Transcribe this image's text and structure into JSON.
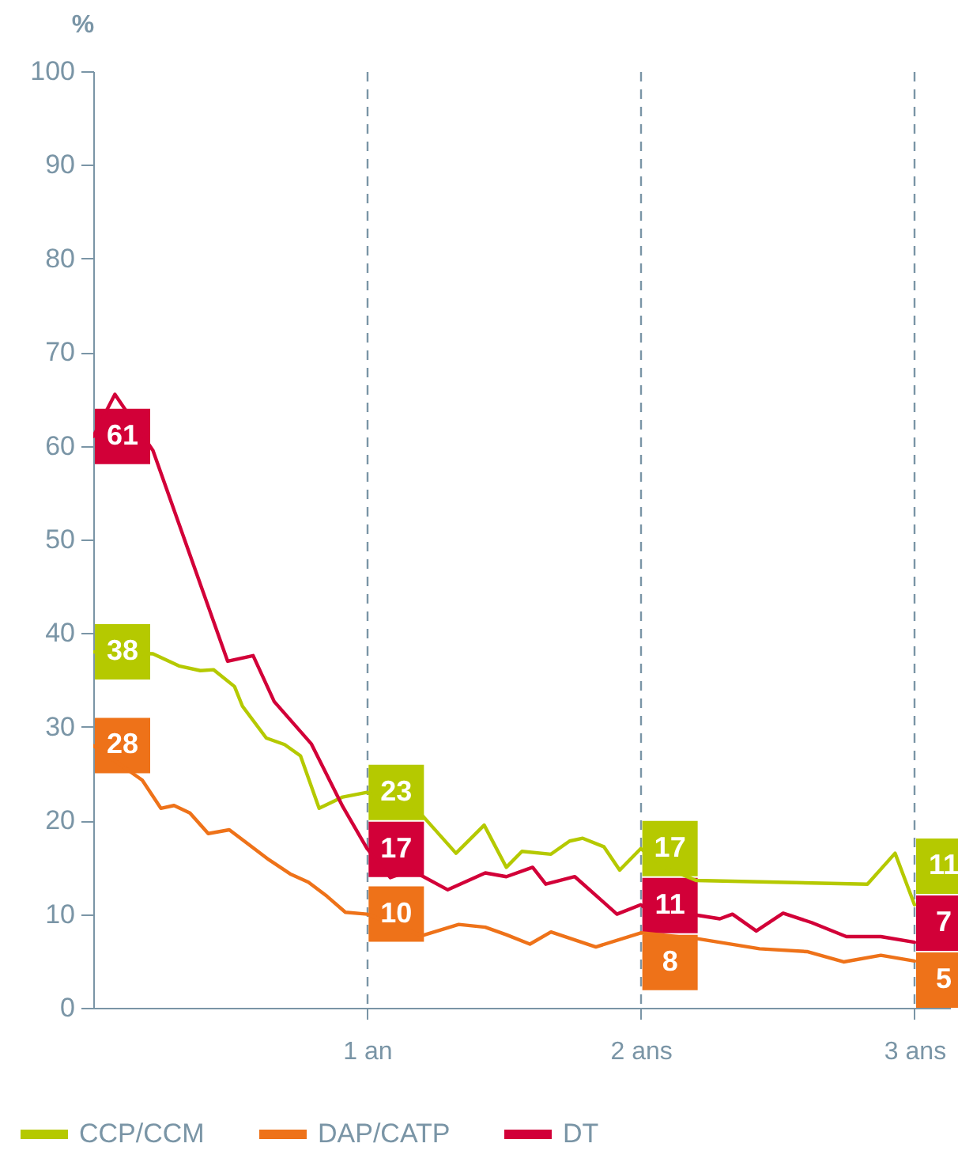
{
  "chart_data": {
    "type": "line",
    "ylabel": "%",
    "xlim": [
      0,
      3.13
    ],
    "ylim": [
      0,
      100
    ],
    "xticks": [
      {
        "value": 1,
        "label": "1 an"
      },
      {
        "value": 2,
        "label": "2 ans"
      },
      {
        "value": 3,
        "label": "3 ans"
      }
    ],
    "yticks": [
      0,
      10,
      20,
      30,
      40,
      50,
      60,
      70,
      80,
      90,
      100
    ],
    "grid": "x",
    "legend": "bottom left",
    "series": [
      {
        "name": "CCP/CCM",
        "color": "#b5c900",
        "x": [
          0,
          0.218,
          0.313,
          0.391,
          0.439,
          0.516,
          0.545,
          0.632,
          0.699,
          0.757,
          0.825,
          0.911,
          1,
          1.2,
          1.325,
          1.428,
          1.509,
          1.566,
          1.672,
          1.74,
          1.788,
          1.865,
          1.923,
          2,
          2.087,
          2.202,
          2.828,
          2.929,
          3
        ],
        "values": [
          38,
          37.8,
          36.5,
          36,
          36.1,
          34.3,
          32.2,
          28.8,
          28.1,
          26.9,
          21.3,
          22.5,
          23,
          20.6,
          16.5,
          19.5,
          15,
          16.7,
          16.4,
          17.8,
          18.1,
          17.2,
          14.7,
          17,
          15,
          13.6,
          13.2,
          16.5,
          11
        ],
        "value_labels": [
          "38",
          null,
          null,
          null,
          null,
          null,
          null,
          null,
          null,
          null,
          null,
          null,
          "23",
          null,
          null,
          null,
          null,
          null,
          null,
          null,
          null,
          null,
          null,
          "17",
          null,
          null,
          null,
          null,
          "11"
        ]
      },
      {
        "name": "DAP/CATP",
        "color": "#ee7219",
        "x": [
          0,
          0.179,
          0.247,
          0.295,
          0.353,
          0.42,
          0.497,
          0.565,
          0.642,
          0.719,
          0.786,
          0.854,
          0.921,
          1,
          1.2,
          1.335,
          1.432,
          1.509,
          1.595,
          1.672,
          1.836,
          2,
          2.202,
          2.434,
          2.607,
          2.741,
          2.877,
          3
        ],
        "values": [
          28,
          24.3,
          21.3,
          21.6,
          20.8,
          18.6,
          19,
          17.5,
          15.8,
          14.3,
          13.4,
          11.9,
          10.2,
          10,
          7.7,
          8.9,
          8.6,
          7.8,
          6.8,
          8.1,
          6.5,
          8,
          7.4,
          6.3,
          6,
          4.9,
          5.6,
          5
        ],
        "value_labels": [
          "28",
          null,
          null,
          null,
          null,
          null,
          null,
          null,
          null,
          null,
          null,
          null,
          null,
          "10",
          null,
          null,
          null,
          null,
          null,
          null,
          null,
          "8",
          null,
          null,
          null,
          null,
          null,
          "5"
        ]
      },
      {
        "name": "DT",
        "color": "#d20038",
        "x": [
          0,
          0.079,
          0.218,
          0.491,
          0.584,
          0.661,
          0.796,
          0.911,
          1,
          1.085,
          1.162,
          1.295,
          1.432,
          1.509,
          1.605,
          1.653,
          1.759,
          1.913,
          2,
          2.087,
          2.202,
          2.289,
          2.335,
          2.422,
          2.52,
          2.624,
          2.751,
          2.877,
          3
        ],
        "values": [
          61,
          65.5,
          59.5,
          37,
          37.6,
          32.7,
          28.2,
          21.5,
          17,
          13.9,
          14.7,
          12.6,
          14.4,
          14,
          15,
          13.2,
          14,
          10,
          11,
          9.1,
          9.9,
          9.5,
          10,
          8.2,
          10.1,
          9.1,
          7.6,
          7.6,
          7
        ],
        "value_labels": [
          "61",
          null,
          null,
          null,
          null,
          null,
          null,
          null,
          "17",
          null,
          null,
          null,
          null,
          null,
          null,
          null,
          null,
          null,
          "11",
          null,
          null,
          null,
          null,
          null,
          null,
          null,
          null,
          null,
          "7"
        ]
      }
    ]
  }
}
